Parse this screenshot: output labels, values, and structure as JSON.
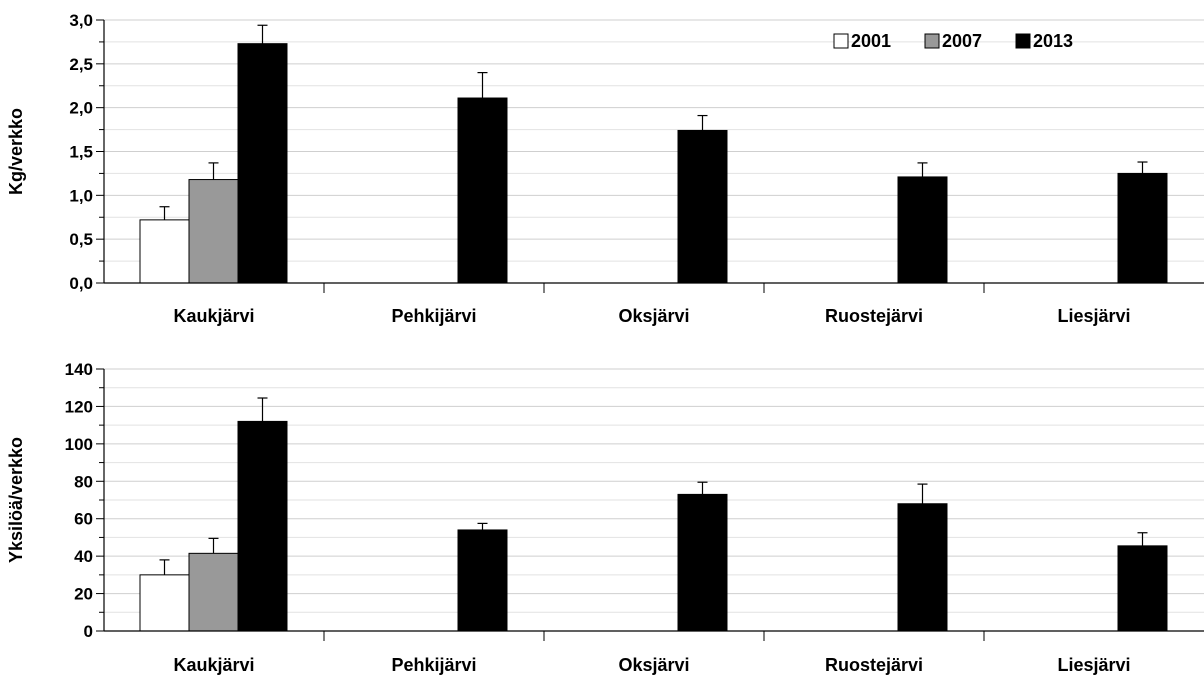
{
  "chart_data": [
    {
      "type": "bar",
      "ylabel": "Kg/verkko",
      "xlabel": "",
      "categories": [
        "Kaukjärvi",
        "Pehkijärvi",
        "Oksjärvi",
        "Ruostejärvi",
        "Liesjärvi"
      ],
      "ylim": [
        0,
        3.0
      ],
      "yticks": [
        "0,0",
        "0,5",
        "1,0",
        "1,5",
        "2,0",
        "2,5",
        "3,0"
      ],
      "grid": true,
      "legend": "top-right",
      "series": [
        {
          "name": "2001",
          "color": "#ffffff",
          "values": [
            0.72,
            null,
            null,
            null,
            null
          ],
          "errors": [
            0.15,
            null,
            null,
            null,
            null
          ]
        },
        {
          "name": "2007",
          "color": "#999999",
          "values": [
            1.18,
            null,
            null,
            null,
            null
          ],
          "errors": [
            0.19,
            null,
            null,
            null,
            null
          ]
        },
        {
          "name": "2013",
          "color": "#000000",
          "values": [
            2.73,
            2.11,
            1.74,
            1.21,
            1.25
          ],
          "errors": [
            0.21,
            0.29,
            0.17,
            0.16,
            0.13
          ]
        }
      ]
    },
    {
      "type": "bar",
      "ylabel": "Yksilöä/verkko",
      "xlabel": "",
      "categories": [
        "Kaukjärvi",
        "Pehkijärvi",
        "Oksjärvi",
        "Ruostejärvi",
        "Liesjärvi"
      ],
      "ylim": [
        0,
        140
      ],
      "yticks": [
        "0",
        "20",
        "40",
        "60",
        "80",
        "100",
        "120",
        "140"
      ],
      "grid": true,
      "series": [
        {
          "name": "2001",
          "color": "#ffffff",
          "values": [
            30,
            null,
            null,
            null,
            null
          ],
          "errors": [
            8,
            null,
            null,
            null,
            null
          ]
        },
        {
          "name": "2007",
          "color": "#999999",
          "values": [
            41.5,
            null,
            null,
            null,
            null
          ],
          "errors": [
            8,
            null,
            null,
            null,
            null
          ]
        },
        {
          "name": "2013",
          "color": "#000000",
          "values": [
            112,
            54,
            73,
            68,
            45.5
          ],
          "errors": [
            12.5,
            3.5,
            6.5,
            10.5,
            7
          ]
        }
      ]
    }
  ],
  "legend": {
    "items": [
      {
        "label": "2001",
        "color": "#ffffff"
      },
      {
        "label": "2007",
        "color": "#999999"
      },
      {
        "label": "2013",
        "color": "#000000"
      }
    ]
  }
}
